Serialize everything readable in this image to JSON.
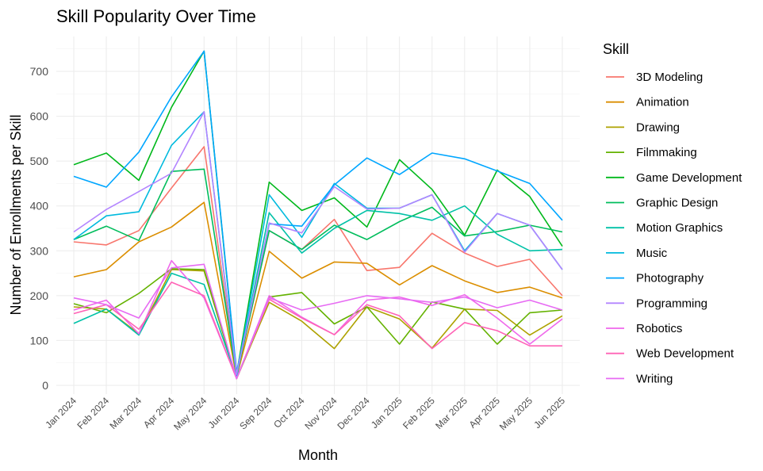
{
  "chart_data": {
    "type": "line",
    "title": "Skill Popularity Over Time",
    "xlabel": "Month",
    "ylabel": "Number of Enrollments per Skill",
    "legend_title": "Skill",
    "legend_position": "right",
    "grid": true,
    "ylim": [
      0,
      755
    ],
    "yticks": [
      0,
      100,
      200,
      300,
      400,
      500,
      600,
      700
    ],
    "categories": [
      "Jan 2024",
      "Feb 2024",
      "Mar 2024",
      "Apr 2024",
      "May 2024",
      "Jun 2024",
      "Sep 2024",
      "Oct 2024",
      "Nov 2024",
      "Dec 2024",
      "Jan 2025",
      "Feb 2025",
      "Mar 2025",
      "Apr 2025",
      "May 2025",
      "Jun 2025"
    ],
    "series": [
      {
        "name": "3D Modeling",
        "color": "#F8766D",
        "values": [
          320,
          313,
          345,
          440,
          532,
          20,
          345,
          303,
          370,
          256,
          263,
          339,
          295,
          265,
          281,
          200
        ]
      },
      {
        "name": "Animation",
        "color": "#DB8E00",
        "values": [
          242,
          258,
          320,
          353,
          408,
          18,
          299,
          239,
          275,
          272,
          224,
          267,
          233,
          207,
          219,
          195
        ]
      },
      {
        "name": "Drawing",
        "color": "#AEA200",
        "values": [
          175,
          170,
          115,
          258,
          255,
          15,
          185,
          143,
          82,
          175,
          148,
          83,
          170,
          167,
          112,
          155
        ]
      },
      {
        "name": "Filmmaking",
        "color": "#64B200",
        "values": [
          182,
          162,
          205,
          260,
          258,
          15,
          197,
          207,
          137,
          175,
          92,
          186,
          170,
          92,
          162,
          168
        ]
      },
      {
        "name": "Game Development",
        "color": "#00B81B",
        "values": [
          492,
          518,
          457,
          620,
          745,
          25,
          453,
          390,
          418,
          353,
          503,
          437,
          335,
          480,
          421,
          310
        ]
      },
      {
        "name": "Graphic Design",
        "color": "#00BD5C",
        "values": [
          325,
          355,
          323,
          477,
          482,
          22,
          345,
          303,
          357,
          325,
          365,
          397,
          333,
          343,
          357,
          342
        ]
      },
      {
        "name": "Motion Graphics",
        "color": "#00C1A7",
        "values": [
          138,
          170,
          112,
          250,
          225,
          18,
          385,
          295,
          350,
          390,
          383,
          368,
          400,
          337,
          300,
          303
        ]
      },
      {
        "name": "Music",
        "color": "#00BADE",
        "values": [
          325,
          378,
          387,
          535,
          610,
          20,
          425,
          330,
          450,
          395,
          395,
          425,
          300,
          383,
          357,
          258
        ]
      },
      {
        "name": "Photography",
        "color": "#00A6FF",
        "values": [
          466,
          442,
          520,
          643,
          745,
          30,
          360,
          355,
          447,
          507,
          470,
          518,
          505,
          478,
          450,
          368
        ]
      },
      {
        "name": "Programming",
        "color": "#B385FF",
        "values": [
          342,
          392,
          432,
          473,
          610,
          25,
          362,
          340,
          443,
          393,
          395,
          425,
          297,
          383,
          357,
          258
        ]
      },
      {
        "name": "Robotics",
        "color": "#EF67EB",
        "values": [
          168,
          190,
          115,
          278,
          195,
          15,
          200,
          152,
          113,
          190,
          197,
          178,
          202,
          150,
          92,
          148
        ]
      },
      {
        "name": "Web Development",
        "color": "#FF63B6",
        "values": [
          160,
          180,
          125,
          230,
          200,
          15,
          192,
          150,
          113,
          180,
          155,
          82,
          140,
          122,
          88,
          88
        ]
      },
      {
        "name": "Writing",
        "color": "#E76BF3",
        "values": [
          195,
          180,
          150,
          262,
          270,
          15,
          195,
          168,
          183,
          200,
          193,
          185,
          197,
          173,
          190,
          168
        ]
      }
    ]
  }
}
